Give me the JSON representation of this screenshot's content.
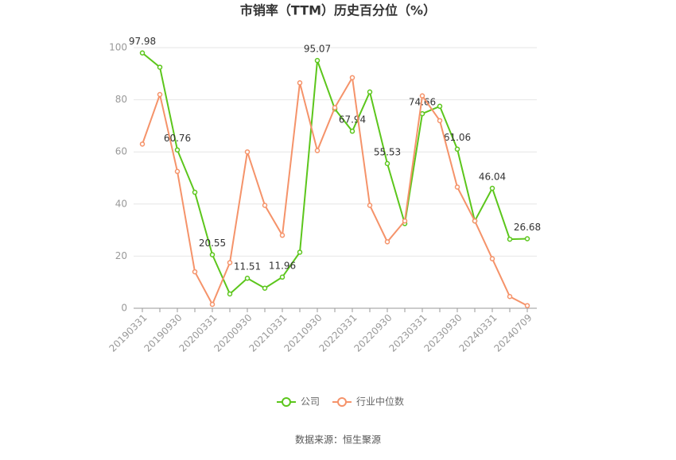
{
  "chart_data": {
    "type": "line",
    "title": "市销率（TTM）历史百分位（%）",
    "categories": [
      "20190331",
      null,
      "20190930",
      null,
      "20200331",
      null,
      "20200930",
      null,
      "20210331",
      null,
      "20210930",
      null,
      "20220331",
      null,
      "20220930",
      null,
      "20230331",
      null,
      "20230930",
      null,
      "20240331",
      null,
      "20240709"
    ],
    "series": [
      {
        "name": "公司",
        "color": "#5cc61c",
        "values": [
          97.98,
          92.5,
          60.76,
          44.5,
          20.55,
          5.5,
          11.51,
          7.7,
          11.96,
          21.5,
          95.07,
          76.5,
          67.94,
          83,
          55.53,
          32.5,
          74.66,
          77.5,
          61.06,
          33.5,
          46.04,
          26.5,
          26.68
        ],
        "value_labels": [
          "97.98",
          null,
          "60.76",
          null,
          "20.55",
          null,
          "11.51",
          null,
          "11.96",
          null,
          "95.07",
          null,
          "67.94",
          null,
          "55.53",
          null,
          "74.66",
          null,
          "61.06",
          null,
          "46.04",
          null,
          "26.68"
        ]
      },
      {
        "name": "行业中位数",
        "color": "#f5936a",
        "values": [
          63,
          82,
          52.5,
          14,
          1.5,
          17.5,
          60,
          39.5,
          28,
          86.5,
          60.5,
          77,
          88.5,
          39.5,
          25.5,
          33.5,
          81.5,
          72,
          46.5,
          33.5,
          19,
          4.5,
          1
        ]
      }
    ],
    "ylim": [
      0,
      100
    ],
    "yticks": [
      0,
      20,
      40,
      60,
      80,
      100
    ],
    "grid": true,
    "source": "数据来源：恒生聚源"
  }
}
